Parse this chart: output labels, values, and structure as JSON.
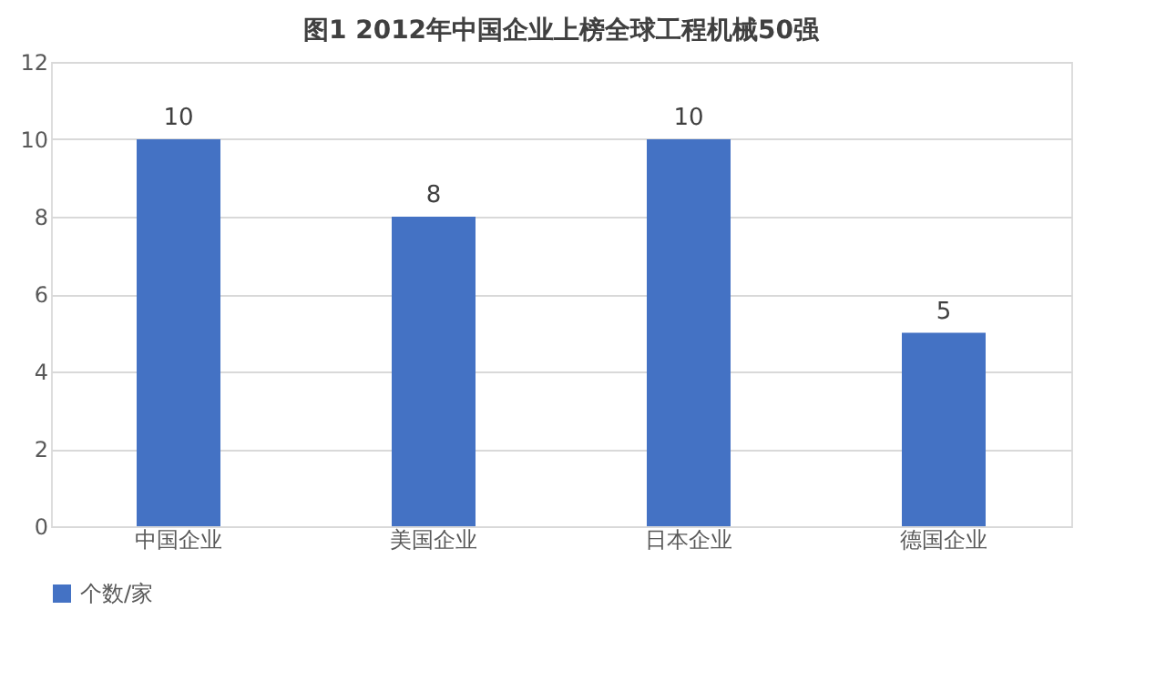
{
  "chart_data": {
    "type": "bar",
    "title": "图1  2012年中国企业上榜全球工程机械50强",
    "categories": [
      "中国企业",
      "美国企业",
      "日本企业",
      "德国企业"
    ],
    "series": [
      {
        "name": "个数/家",
        "color": "#4472c4",
        "values": [
          10,
          8,
          10,
          5
        ]
      }
    ],
    "ylim": [
      0,
      12
    ],
    "yticks": [
      0,
      2,
      4,
      6,
      8,
      10,
      12
    ],
    "grid": "y",
    "legend": "bottom",
    "data_labels": true
  }
}
